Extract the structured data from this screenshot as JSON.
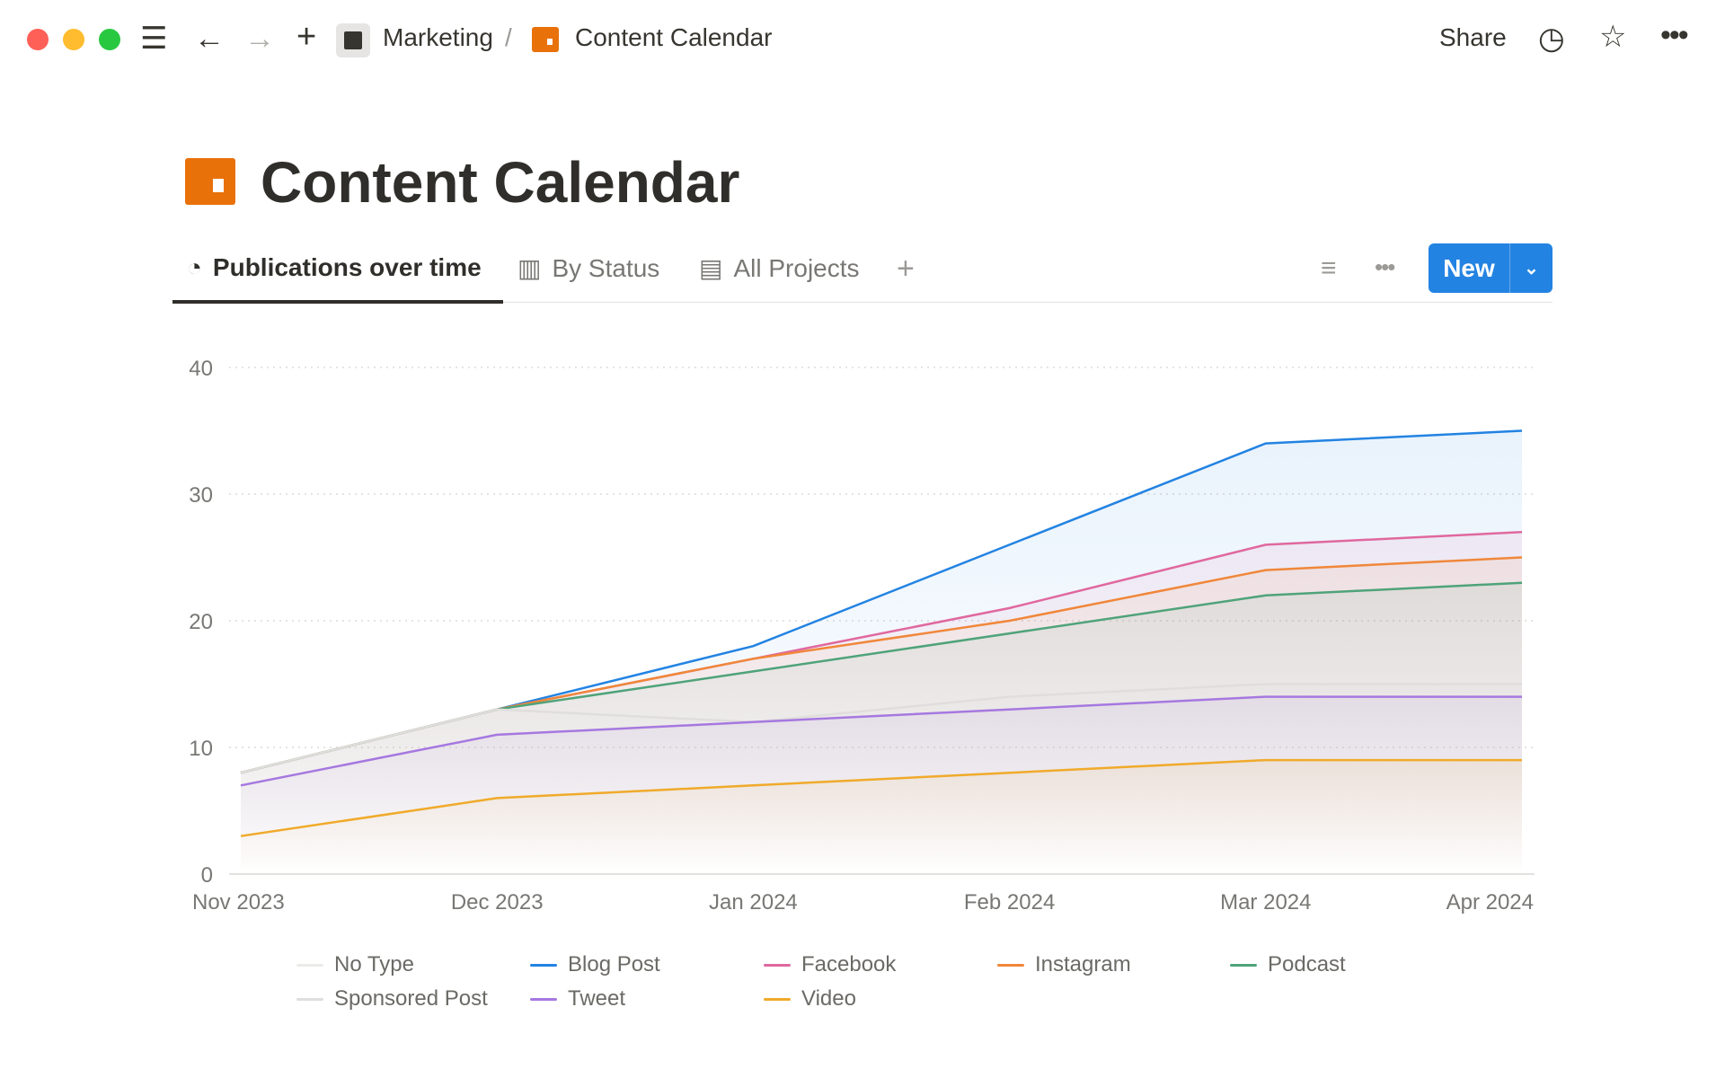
{
  "topbar": {
    "breadcrumb_parent": "Marketing",
    "separator": "/",
    "breadcrumb_current": "Content Calendar",
    "share_label": "Share"
  },
  "page": {
    "title": "Content Calendar",
    "icon": "calendar-icon"
  },
  "tabs": [
    {
      "label": "Publications over time",
      "icon": "chart-pie-icon"
    },
    {
      "label": "By Status",
      "icon": "board-icon"
    },
    {
      "label": "All Projects",
      "icon": "table-icon"
    }
  ],
  "toolbar": {
    "new_label": "New"
  },
  "colors": {
    "accent": "#2383e2",
    "page_icon": "#e8710a"
  },
  "chart_data": {
    "type": "area",
    "categories": [
      "Nov 2023",
      "Dec 2023",
      "Jan 2024",
      "Feb 2024",
      "Mar 2024",
      "Apr 2024"
    ],
    "yticks": [
      0,
      10,
      20,
      30,
      40
    ],
    "ylim": [
      0,
      40
    ],
    "grid": true,
    "legend_placement": "bottom",
    "series": [
      {
        "name": "No Type",
        "color": "#ecebea",
        "values": [
          7,
          11,
          12,
          13,
          14,
          14
        ]
      },
      {
        "name": "Blog Post",
        "color": "#2383e2",
        "values": [
          8,
          13,
          18,
          26,
          34,
          35
        ]
      },
      {
        "name": "Facebook",
        "color": "#e0689f",
        "values": [
          8,
          13,
          17,
          21,
          26,
          27
        ]
      },
      {
        "name": "Instagram",
        "color": "#f0873a",
        "values": [
          8,
          13,
          17,
          20,
          24,
          25
        ]
      },
      {
        "name": "Podcast",
        "color": "#4fa37a",
        "values": [
          8,
          13,
          16,
          19,
          22,
          23
        ]
      },
      {
        "name": "Sponsored Post",
        "color": "#e0dedc",
        "values": [
          8,
          13,
          12,
          14,
          15,
          15
        ]
      },
      {
        "name": "Tweet",
        "color": "#a678e0",
        "values": [
          7,
          11,
          12,
          13,
          14,
          14
        ]
      },
      {
        "name": "Video",
        "color": "#f0aa2a",
        "values": [
          3,
          6,
          7,
          8,
          9,
          9
        ]
      }
    ]
  }
}
